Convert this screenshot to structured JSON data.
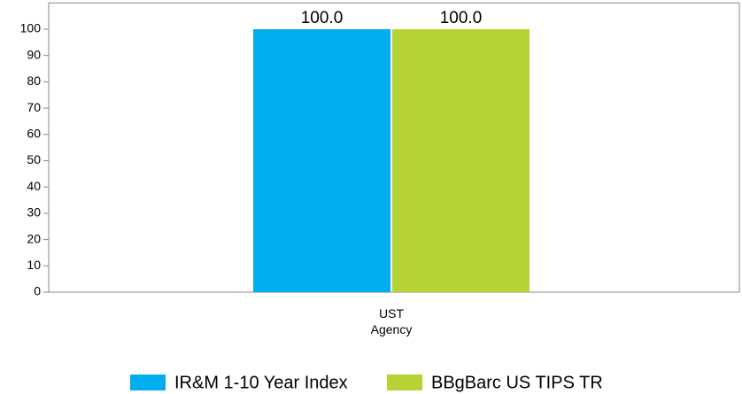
{
  "chart_data": {
    "type": "bar",
    "categories": [
      "UST Agency"
    ],
    "series": [
      {
        "name": "IR&M 1-10 Year Index",
        "color": "#00adef",
        "values": [
          100
        ],
        "value_labels": [
          "100.0"
        ]
      },
      {
        "name": "BBgBarc US TIPS TR",
        "color": "#b5d334",
        "values": [
          100
        ],
        "value_labels": [
          "100.0"
        ]
      }
    ],
    "ylim": [
      0,
      110
    ],
    "yticks": [
      0,
      10,
      20,
      30,
      40,
      50,
      60,
      70,
      80,
      90,
      100
    ],
    "grid": false,
    "legend": "bottom"
  }
}
